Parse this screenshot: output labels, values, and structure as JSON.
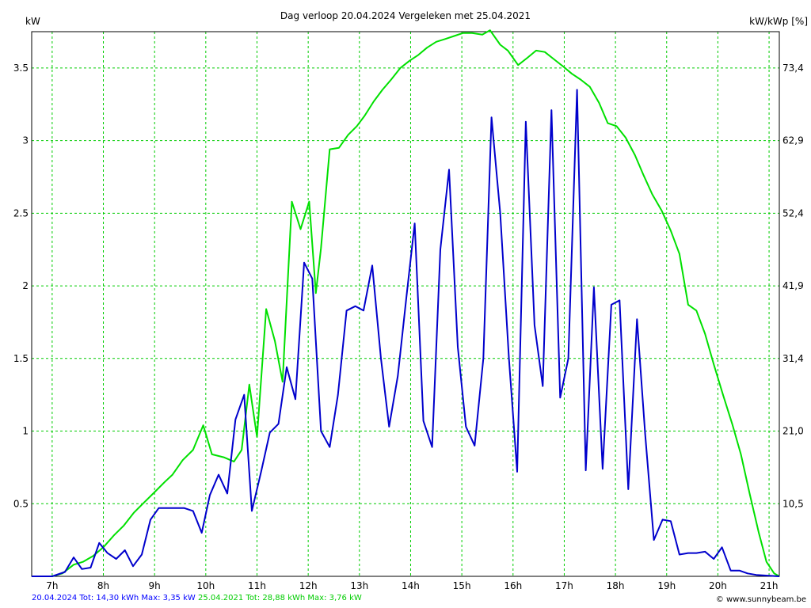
{
  "chart_data": {
    "type": "line",
    "title": "Dag  verloop 20.04.2024   Vergeleken met 25.04.2021",
    "ylabel_left": "kW",
    "ylabel_right": "kW/kWp [%]",
    "x_range": [
      6.6,
      21.2
    ],
    "ylim": [
      0,
      3.75
    ],
    "x_ticks": [
      {
        "value": 7,
        "label": "7h"
      },
      {
        "value": 8,
        "label": "8h"
      },
      {
        "value": 9,
        "label": "9h"
      },
      {
        "value": 10,
        "label": "10h"
      },
      {
        "value": 11,
        "label": "11h"
      },
      {
        "value": 12,
        "label": "12h"
      },
      {
        "value": 13,
        "label": "13h"
      },
      {
        "value": 14,
        "label": "14h"
      },
      {
        "value": 15,
        "label": "15h"
      },
      {
        "value": 16,
        "label": "16h"
      },
      {
        "value": 17,
        "label": "17h"
      },
      {
        "value": 18,
        "label": "18h"
      },
      {
        "value": 19,
        "label": "19h"
      },
      {
        "value": 20,
        "label": "20h"
      },
      {
        "value": 21,
        "label": "21h"
      }
    ],
    "y_ticks_left": [
      {
        "value": 0.5,
        "label": "0.5"
      },
      {
        "value": 1,
        "label": "1"
      },
      {
        "value": 1.5,
        "label": "1.5"
      },
      {
        "value": 2,
        "label": "2"
      },
      {
        "value": 2.5,
        "label": "2.5"
      },
      {
        "value": 3,
        "label": "3"
      },
      {
        "value": 3.5,
        "label": "3.5"
      }
    ],
    "y_ticks_right": [
      {
        "value": 0.5,
        "label": "10,5"
      },
      {
        "value": 1,
        "label": "21,0"
      },
      {
        "value": 1.5,
        "label": "31,4"
      },
      {
        "value": 2,
        "label": "41,9"
      },
      {
        "value": 2.5,
        "label": "52,4"
      },
      {
        "value": 3,
        "label": "62,9"
      },
      {
        "value": 3.5,
        "label": "73,4"
      }
    ],
    "grid": true,
    "colors": {
      "grid": "#00cc00",
      "series_2024": "#0000cc",
      "series_2021": "#00e000"
    },
    "series": [
      {
        "name": "20.04.2024",
        "color": "#0000cc",
        "points": [
          [
            6.6,
            0
          ],
          [
            7.0,
            0
          ],
          [
            7.25,
            0.03
          ],
          [
            7.42,
            0.13
          ],
          [
            7.58,
            0.05
          ],
          [
            7.75,
            0.06
          ],
          [
            7.92,
            0.23
          ],
          [
            8.08,
            0.16
          ],
          [
            8.25,
            0.12
          ],
          [
            8.42,
            0.18
          ],
          [
            8.58,
            0.07
          ],
          [
            8.75,
            0.15
          ],
          [
            8.92,
            0.39
          ],
          [
            9.08,
            0.47
          ],
          [
            9.25,
            0.47
          ],
          [
            9.42,
            0.47
          ],
          [
            9.58,
            0.47
          ],
          [
            9.75,
            0.45
          ],
          [
            9.92,
            0.3
          ],
          [
            10.08,
            0.56
          ],
          [
            10.25,
            0.7
          ],
          [
            10.42,
            0.57
          ],
          [
            10.58,
            1.08
          ],
          [
            10.75,
            1.25
          ],
          [
            10.9,
            0.45
          ],
          [
            11.08,
            0.72
          ],
          [
            11.25,
            0.99
          ],
          [
            11.42,
            1.05
          ],
          [
            11.58,
            1.44
          ],
          [
            11.75,
            1.22
          ],
          [
            11.92,
            2.16
          ],
          [
            12.08,
            2.05
          ],
          [
            12.25,
            1.0
          ],
          [
            12.42,
            0.89
          ],
          [
            12.58,
            1.25
          ],
          [
            12.75,
            1.83
          ],
          [
            12.92,
            1.86
          ],
          [
            13.08,
            1.83
          ],
          [
            13.25,
            2.14
          ],
          [
            13.42,
            1.5
          ],
          [
            13.58,
            1.03
          ],
          [
            13.75,
            1.38
          ],
          [
            13.92,
            1.93
          ],
          [
            14.08,
            2.43
          ],
          [
            14.25,
            1.07
          ],
          [
            14.42,
            0.89
          ],
          [
            14.58,
            2.25
          ],
          [
            14.75,
            2.8
          ],
          [
            14.92,
            1.58
          ],
          [
            15.08,
            1.03
          ],
          [
            15.25,
            0.9
          ],
          [
            15.42,
            1.5
          ],
          [
            15.58,
            3.16
          ],
          [
            15.75,
            2.5
          ],
          [
            15.92,
            1.5
          ],
          [
            16.08,
            0.72
          ],
          [
            16.25,
            3.13
          ],
          [
            16.42,
            1.73
          ],
          [
            16.58,
            1.31
          ],
          [
            16.75,
            3.21
          ],
          [
            16.92,
            1.23
          ],
          [
            17.08,
            1.5
          ],
          [
            17.25,
            3.35
          ],
          [
            17.42,
            0.73
          ],
          [
            17.58,
            1.99
          ],
          [
            17.75,
            0.74
          ],
          [
            17.92,
            1.87
          ],
          [
            18.08,
            1.9
          ],
          [
            18.25,
            0.6
          ],
          [
            18.42,
            1.77
          ],
          [
            18.58,
            0.98
          ],
          [
            18.75,
            0.25
          ],
          [
            18.92,
            0.39
          ],
          [
            19.08,
            0.38
          ],
          [
            19.25,
            0.15
          ],
          [
            19.42,
            0.16
          ],
          [
            19.58,
            0.16
          ],
          [
            19.75,
            0.17
          ],
          [
            19.92,
            0.12
          ],
          [
            20.08,
            0.2
          ],
          [
            20.25,
            0.04
          ],
          [
            20.42,
            0.04
          ],
          [
            20.58,
            0.02
          ],
          [
            20.75,
            0.01
          ],
          [
            21.2,
            0
          ]
        ]
      },
      {
        "name": "25.04.2021",
        "color": "#00e000",
        "points": [
          [
            6.6,
            0
          ],
          [
            7.0,
            0
          ],
          [
            7.2,
            0.02
          ],
          [
            7.42,
            0.08
          ],
          [
            7.6,
            0.1
          ],
          [
            7.8,
            0.14
          ],
          [
            8.0,
            0.2
          ],
          [
            8.2,
            0.28
          ],
          [
            8.4,
            0.35
          ],
          [
            8.6,
            0.44
          ],
          [
            8.8,
            0.51
          ],
          [
            9.0,
            0.58
          ],
          [
            9.2,
            0.65
          ],
          [
            9.35,
            0.7
          ],
          [
            9.55,
            0.8
          ],
          [
            9.75,
            0.87
          ],
          [
            9.95,
            1.04
          ],
          [
            10.12,
            0.84
          ],
          [
            10.35,
            0.82
          ],
          [
            10.55,
            0.79
          ],
          [
            10.7,
            0.87
          ],
          [
            10.85,
            1.32
          ],
          [
            11.0,
            0.96
          ],
          [
            11.18,
            1.84
          ],
          [
            11.35,
            1.62
          ],
          [
            11.5,
            1.34
          ],
          [
            11.68,
            2.58
          ],
          [
            11.85,
            2.39
          ],
          [
            12.02,
            2.58
          ],
          [
            12.15,
            1.95
          ],
          [
            12.25,
            2.26
          ],
          [
            12.42,
            2.94
          ],
          [
            12.6,
            2.95
          ],
          [
            12.78,
            3.04
          ],
          [
            12.95,
            3.1
          ],
          [
            13.1,
            3.17
          ],
          [
            13.28,
            3.27
          ],
          [
            13.45,
            3.35
          ],
          [
            13.62,
            3.42
          ],
          [
            13.8,
            3.5
          ],
          [
            13.98,
            3.55
          ],
          [
            14.15,
            3.59
          ],
          [
            14.32,
            3.64
          ],
          [
            14.5,
            3.68
          ],
          [
            14.68,
            3.7
          ],
          [
            14.85,
            3.72
          ],
          [
            15.02,
            3.74
          ],
          [
            15.2,
            3.74
          ],
          [
            15.4,
            3.73
          ],
          [
            15.55,
            3.76
          ],
          [
            15.75,
            3.66
          ],
          [
            15.9,
            3.62
          ],
          [
            16.1,
            3.52
          ],
          [
            16.28,
            3.57
          ],
          [
            16.45,
            3.62
          ],
          [
            16.62,
            3.61
          ],
          [
            16.8,
            3.56
          ],
          [
            16.98,
            3.51
          ],
          [
            17.15,
            3.46
          ],
          [
            17.32,
            3.42
          ],
          [
            17.5,
            3.37
          ],
          [
            17.68,
            3.26
          ],
          [
            17.85,
            3.12
          ],
          [
            18.02,
            3.1
          ],
          [
            18.2,
            3.02
          ],
          [
            18.38,
            2.9
          ],
          [
            18.55,
            2.76
          ],
          [
            18.72,
            2.63
          ],
          [
            18.9,
            2.52
          ],
          [
            19.08,
            2.38
          ],
          [
            19.25,
            2.22
          ],
          [
            19.42,
            1.87
          ],
          [
            19.58,
            1.83
          ],
          [
            19.75,
            1.67
          ],
          [
            19.92,
            1.46
          ],
          [
            20.1,
            1.25
          ],
          [
            20.28,
            1.05
          ],
          [
            20.45,
            0.84
          ],
          [
            20.62,
            0.57
          ],
          [
            20.8,
            0.3
          ],
          [
            20.95,
            0.1
          ],
          [
            21.1,
            0.02
          ],
          [
            21.2,
            0
          ]
        ]
      }
    ]
  },
  "footer": {
    "series_2024_summary": "20.04.2024 Tot: 14,30 kWh Max: 3,35 kW",
    "series_2021_summary": "25.04.2021 Tot: 28,88 kWh Max: 3,76 kW",
    "credit": "© www.sunnybeam.be"
  }
}
